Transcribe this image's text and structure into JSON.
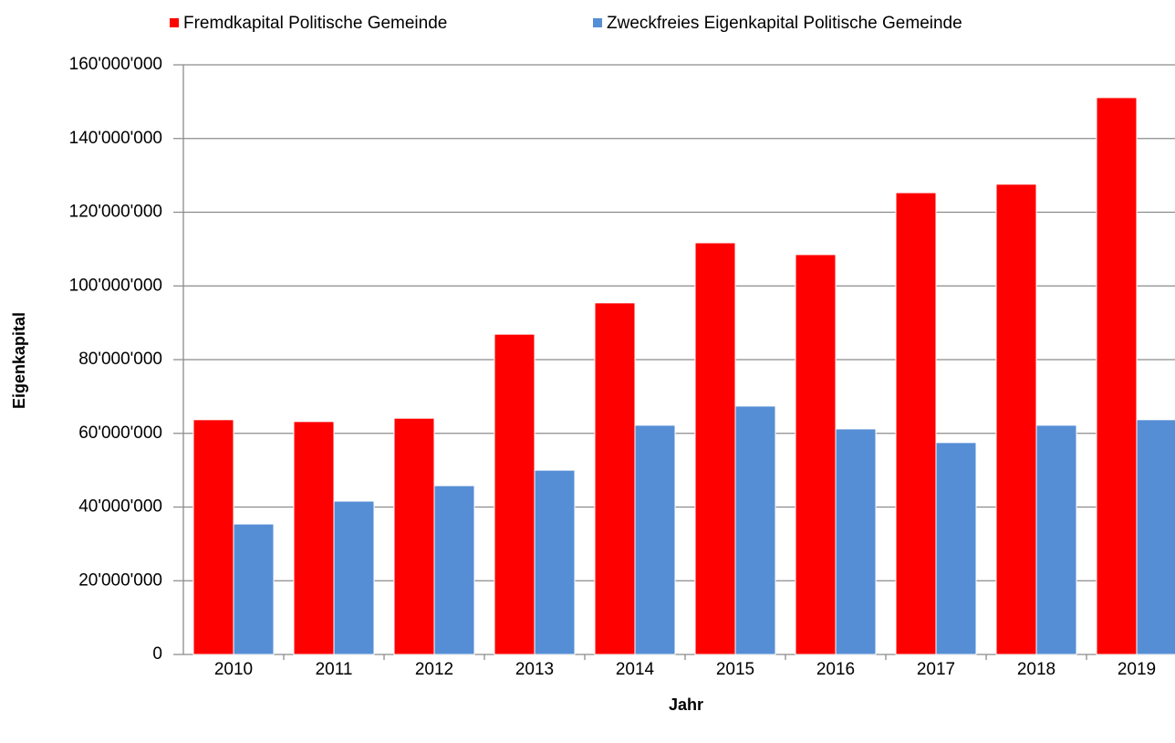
{
  "chart_data": {
    "type": "bar",
    "x_label": "Jahr",
    "y_label": "Eigenkapital",
    "categories": [
      "2010",
      "2011",
      "2012",
      "2013",
      "2014",
      "2015",
      "2016",
      "2017",
      "2018",
      "2019"
    ],
    "series": [
      {
        "name": "Fremdkapital Politische Gemeinde",
        "color": "#ff0000",
        "values": [
          63700000,
          63200000,
          64100000,
          86900000,
          95400000,
          111700000,
          108500000,
          125300000,
          127600000,
          151100000
        ]
      },
      {
        "name": "Zweckfreies Eigenkapital Politische Gemeinde",
        "color": "#558ed5",
        "values": [
          35400000,
          41600000,
          45800000,
          50000000,
          62200000,
          67400000,
          61200000,
          57500000,
          62200000,
          63700000
        ]
      }
    ],
    "ylim": [
      0,
      160000000
    ],
    "yticks": [
      0,
      {
        "value": 20000000,
        "label": "20'000'000"
      },
      {
        "value": 40000000,
        "label": "40'000'000"
      },
      {
        "value": 60000000,
        "label": "60'000'000"
      },
      {
        "value": 80000000,
        "label": "80'000'000"
      },
      {
        "value": 100000000,
        "label": "100'000'000"
      },
      {
        "value": 120000000,
        "label": "120'000'000"
      },
      {
        "value": 140000000,
        "label": "140'000'000"
      },
      {
        "value": 160000000,
        "label": "160'000'000"
      }
    ],
    "grid": true,
    "legend": "top"
  }
}
